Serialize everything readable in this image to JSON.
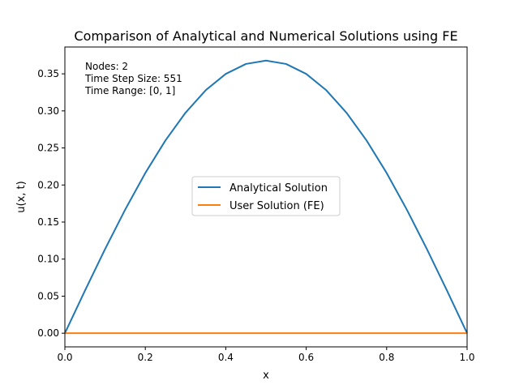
{
  "chart_data": {
    "type": "line",
    "title": "Comparison of Analytical and Numerical Solutions using FE",
    "xlabel": "x",
    "ylabel": "u(x, t)",
    "xlim": [
      0,
      1
    ],
    "ylim": [
      -0.0184,
      0.3862
    ],
    "xticks": [
      0.0,
      0.2,
      0.4,
      0.6,
      0.8,
      1.0
    ],
    "xtick_labels": [
      "0.0",
      "0.2",
      "0.4",
      "0.6",
      "0.8",
      "1.0"
    ],
    "yticks": [
      0.0,
      0.05,
      0.1,
      0.15,
      0.2,
      0.25,
      0.3,
      0.35
    ],
    "ytick_labels": [
      "0.00",
      "0.05",
      "0.10",
      "0.15",
      "0.20",
      "0.25",
      "0.30",
      "0.35"
    ],
    "grid": false,
    "legend_position": "center",
    "annotation": [
      "Nodes: 2",
      "Time Step Size: 551",
      "Time Range: [0, 1]"
    ],
    "series": [
      {
        "name": "Analytical Solution",
        "color": "#1f77b4",
        "x": [
          0.0,
          0.05,
          0.1,
          0.15,
          0.2,
          0.25,
          0.3,
          0.35,
          0.4,
          0.45,
          0.5,
          0.55,
          0.6,
          0.65,
          0.7,
          0.75,
          0.8,
          0.85,
          0.9,
          0.95,
          1.0
        ],
        "y": [
          0.0,
          0.0575,
          0.1136,
          0.1669,
          0.2162,
          0.2601,
          0.2976,
          0.3278,
          0.3499,
          0.3633,
          0.3679,
          0.3633,
          0.3499,
          0.3278,
          0.2976,
          0.2601,
          0.2162,
          0.1669,
          0.1136,
          0.0575,
          0.0
        ]
      },
      {
        "name": "User Solution (FE)",
        "color": "#ff7f0e",
        "x": [
          0.0,
          1.0
        ],
        "y": [
          0.0,
          0.0
        ]
      }
    ]
  }
}
